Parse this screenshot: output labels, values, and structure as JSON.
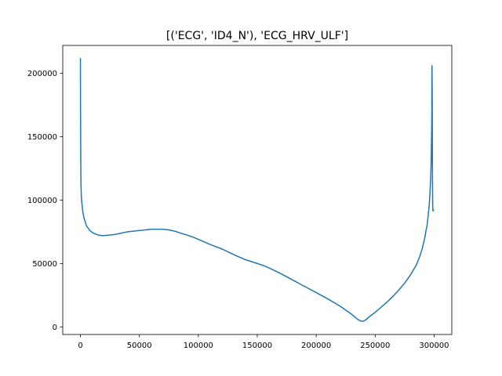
{
  "chart_data": {
    "type": "line",
    "title": "[('ECG', 'ID4_N'), 'ECG_HRV_ULF']",
    "xlabel": "",
    "ylabel": "",
    "xlim": [
      -15000,
      315000
    ],
    "ylim": [
      -6000,
      222000
    ],
    "grid": false,
    "x_ticks": [
      0,
      50000,
      100000,
      150000,
      200000,
      250000,
      300000
    ],
    "x_tick_labels": [
      "0",
      "50000",
      "100000",
      "150000",
      "200000",
      "250000",
      "300000"
    ],
    "y_ticks": [
      0,
      50000,
      100000,
      150000,
      200000
    ],
    "y_tick_labels": [
      "0",
      "50000",
      "100000",
      "150000",
      "200000"
    ],
    "series": [
      {
        "color": "#1f77b4",
        "x": [
          0,
          100,
          300,
          500,
          800,
          1000,
          1500,
          2000,
          3000,
          4000,
          5000,
          6000,
          8000,
          10000,
          12000,
          15000,
          18000,
          20000,
          25000,
          30000,
          35000,
          40000,
          45000,
          50000,
          55000,
          60000,
          65000,
          70000,
          75000,
          80000,
          85000,
          90000,
          95000,
          100000,
          110000,
          120000,
          130000,
          140000,
          150000,
          155000,
          160000,
          170000,
          180000,
          190000,
          200000,
          210000,
          220000,
          230000,
          235000,
          238000,
          240000,
          242000,
          245000,
          250000,
          255000,
          260000,
          265000,
          270000,
          275000,
          280000,
          285000,
          288000,
          290000,
          292000,
          294000,
          295000,
          296000,
          297000,
          297500,
          298000,
          298200,
          298400,
          298600,
          298800,
          299000,
          299500,
          300000
        ],
        "y": [
          212000,
          170000,
          130000,
          110000,
          103000,
          100000,
          95000,
          91000,
          86000,
          83000,
          80000,
          78500,
          76000,
          74500,
          73500,
          72500,
          72000,
          72000,
          72500,
          73000,
          74000,
          75000,
          75500,
          76000,
          76500,
          77000,
          77000,
          77000,
          76500,
          75500,
          74000,
          72500,
          71000,
          69000,
          65000,
          61500,
          57000,
          53000,
          50000,
          48500,
          46500,
          42000,
          37000,
          32000,
          27000,
          22000,
          16500,
          10000,
          6000,
          4500,
          4500,
          5500,
          8000,
          11500,
          15500,
          19500,
          24000,
          29000,
          34500,
          41000,
          49000,
          56000,
          62000,
          70000,
          80000,
          88000,
          98000,
          115000,
          130000,
          160000,
          206000,
          180000,
          120000,
          95000,
          91500,
          92000,
          92000
        ]
      }
    ]
  }
}
